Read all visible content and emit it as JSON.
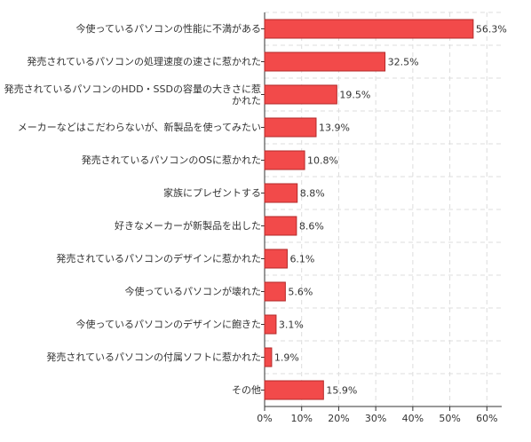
{
  "chart_data": {
    "type": "bar",
    "orientation": "horizontal",
    "categories": [
      "今使っているパソコンの性能に不満がある",
      "発売されているパソコンの処理速度の速さに惹かれた",
      "発売されているパソコンのHDD・SSDの容量の大きさに惹かれた",
      "メーカーなどはこだわらないが、新製品を使ってみたい",
      "発売されているパソコンのOSに惹かれた",
      "家族にプレゼントする",
      "好きなメーカーが新製品を出した",
      "発売されているパソコンのデザインに惹かれた",
      "今使っているパソコンが壊れた",
      "今使っているパソコンのデザインに飽きた",
      "発売されているパソコンの付属ソフトに惹かれた",
      "その他"
    ],
    "values": [
      56.3,
      32.5,
      19.5,
      13.9,
      10.8,
      8.8,
      8.6,
      6.1,
      5.6,
      3.1,
      1.9,
      15.9
    ],
    "value_labels": [
      "56.3%",
      "32.5%",
      "19.5%",
      "13.9%",
      "10.8%",
      "8.8%",
      "8.6%",
      "6.1%",
      "5.6%",
      "3.1%",
      "1.9%",
      "15.9%"
    ],
    "color": "#f24a4a",
    "xlim": [
      0,
      64
    ],
    "xticks": [
      {
        "value": 0,
        "label": "0%"
      },
      {
        "value": 10,
        "label": "10%"
      },
      {
        "value": 20,
        "label": "20%"
      },
      {
        "value": 30,
        "label": "30%"
      },
      {
        "value": 40,
        "label": "40%"
      },
      {
        "value": 50,
        "label": "50%"
      },
      {
        "value": 60,
        "label": "60%"
      }
    ],
    "grid": true
  }
}
